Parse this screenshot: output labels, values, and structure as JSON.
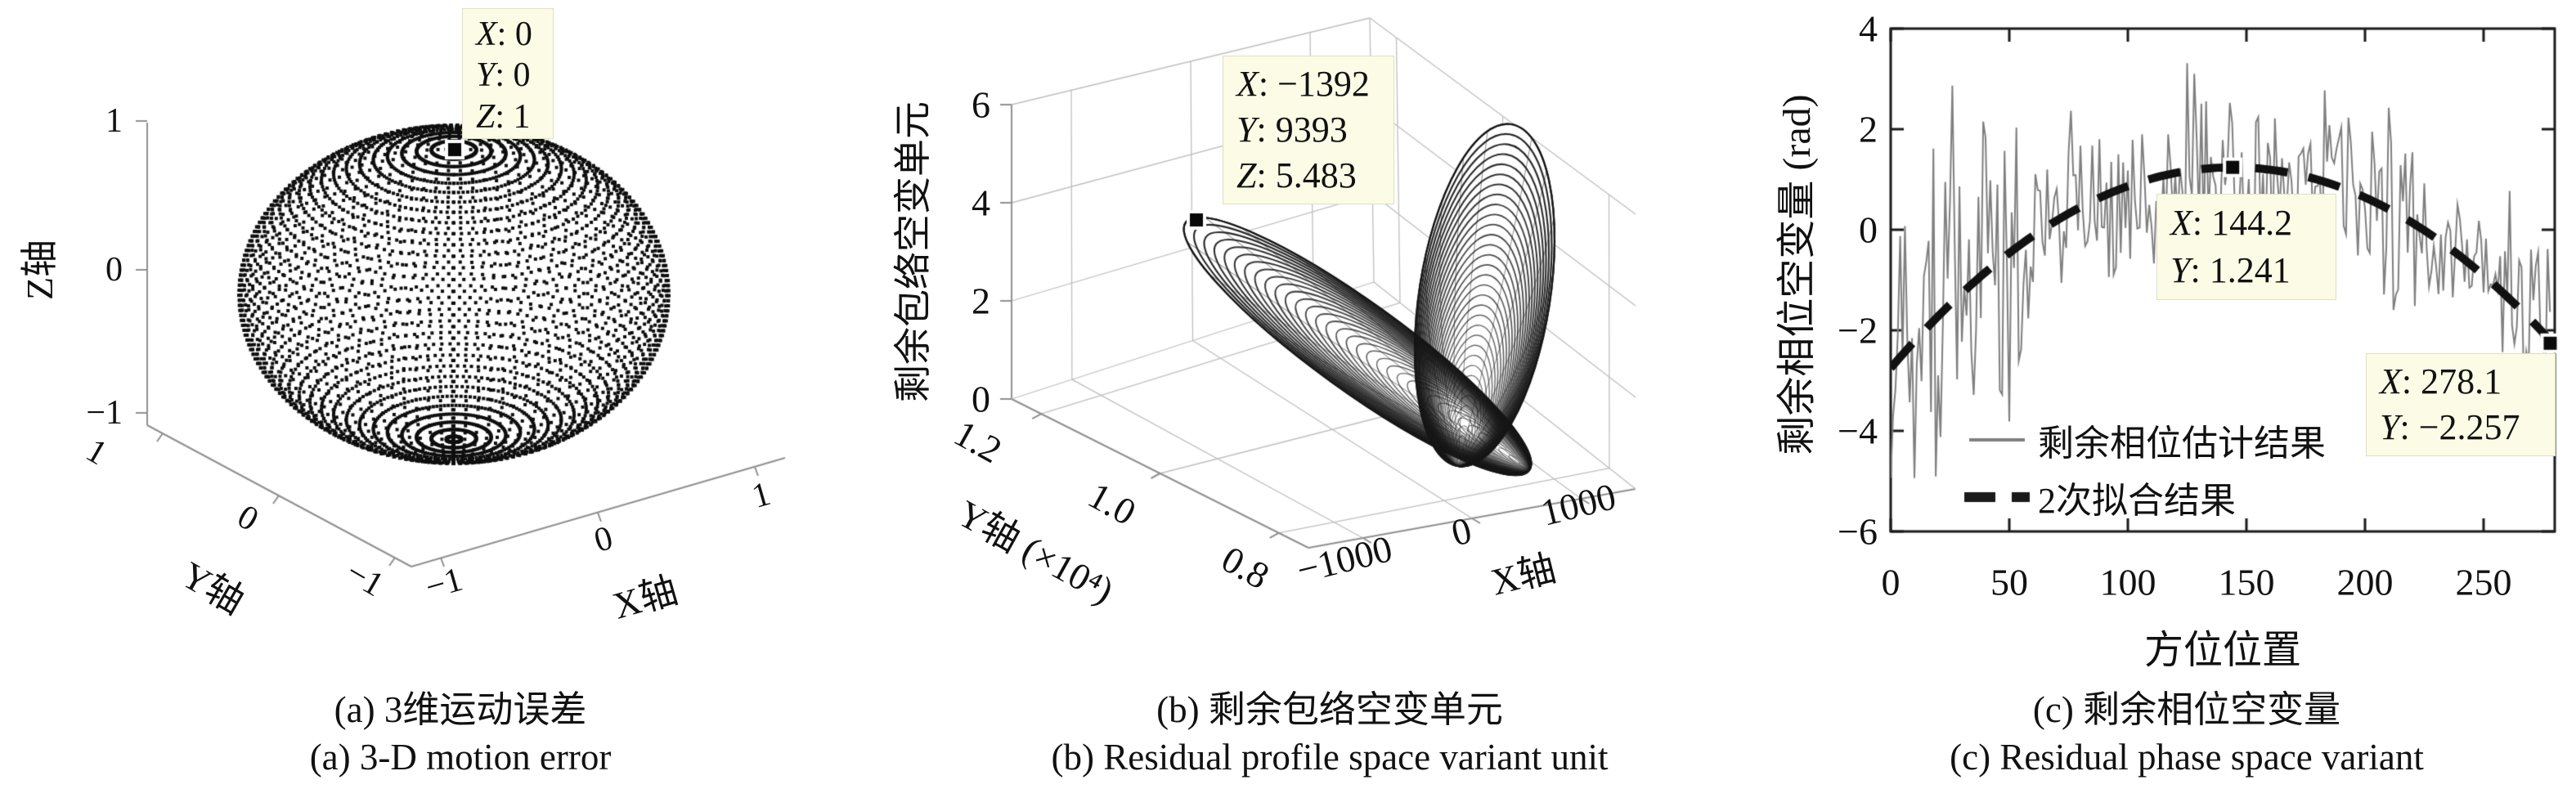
{
  "figure": {
    "background": "#ffffff",
    "datatip_bg": "#fbfbe6",
    "colors": {
      "dots": "#0f0f0f",
      "mesh": "#1c1c1c",
      "grid3d": "#bfbfbf",
      "axis3d": "#909090",
      "axis2d": "#1a1a1a",
      "noisy_line": "#7f7f7f",
      "fit_line": "#111111"
    }
  },
  "chart_data": [
    {
      "panel": "a",
      "type": "scatter",
      "subtype": "3d-point-sphere",
      "caption_zh": "(a) 3维运动误差",
      "caption_en": "(a) 3-D motion error",
      "axes": {
        "x": {
          "label": "X轴",
          "ticks": [
            "−1",
            "0",
            "1"
          ],
          "lim": [
            -1,
            1
          ]
        },
        "y": {
          "label": "Y轴",
          "ticks": [
            "1",
            "0",
            "−1"
          ],
          "lim": [
            -1,
            1
          ]
        },
        "z": {
          "label": "Z轴",
          "ticks": [
            "1",
            "0",
            "−1"
          ],
          "lim": [
            -1,
            1
          ]
        }
      },
      "sphere": {
        "radius": 1,
        "lat_step_deg": 4,
        "lon_step_deg": 3.3
      },
      "datatip": {
        "x": 0,
        "y": 0,
        "z": 1,
        "lines": [
          "X: 0",
          "Y: 0",
          "Z: 1"
        ]
      }
    },
    {
      "panel": "b",
      "type": "area",
      "subtype": "3d-mesh-surface-two-lobes",
      "caption_zh": "(b) 剩余包络空变单元",
      "caption_en": "(b) Residual profile space variant unit",
      "axes": {
        "x": {
          "label": "X轴",
          "ticks": [
            "−1000",
            "0",
            "1000"
          ],
          "lim": [
            -1500,
            1500
          ]
        },
        "y": {
          "label": "Y轴 (×10⁴)",
          "ticks": [
            "1.2",
            "1.0",
            "0.8"
          ],
          "lim": [
            7500,
            12500
          ]
        },
        "z": {
          "label": "剩余包络空变单元",
          "ticks": [
            "0",
            "2",
            "4",
            "6"
          ],
          "lim": [
            0,
            6
          ]
        }
      },
      "surface": {
        "shape": "two V-shaped mesh lobes meeting at the floor",
        "peak_z": 5.483,
        "rings_per_lobe": 34
      },
      "datatip": {
        "x": -1392,
        "y": 9393,
        "z": 5.483,
        "lines": [
          "X: −1392",
          "Y: 9393",
          "Z: 5.483"
        ]
      }
    },
    {
      "panel": "c",
      "type": "line",
      "caption_zh": "(c) 剩余相位空变量",
      "caption_en": "(c) Residual phase space variant",
      "xlabel": "方位位置",
      "ylabel": "剩余相位空变量 (rad)",
      "xlim": [
        0,
        280
      ],
      "ylim": [
        -6,
        4
      ],
      "xticks": [
        "0",
        "50",
        "100",
        "150",
        "200",
        "250"
      ],
      "yticks": [
        "4",
        "2",
        "0",
        "−2",
        "−4",
        "−6"
      ],
      "legend": [
        "剩余相位估计结果",
        "2次拟合结果"
      ],
      "series": [
        {
          "name": "剩余相位估计结果",
          "style": "thin-gray-noisy",
          "generated_from": {
            "basis": "quadratic-fit-plus-noise",
            "noise_sd": 0.9,
            "early_zone_end": 58,
            "early_gain": 1.9,
            "clip": [
              -5.55,
              3.7
            ],
            "seed": 20,
            "x_step": 1,
            "x_end": 278
          }
        },
        {
          "name": "2次拟合结果",
          "style": "thick-black-dashed",
          "fit": {
            "kind": "quadratic",
            "peak_x": 144.2,
            "peak_y": 1.241,
            "k": 0.000192,
            "x_start": 0,
            "x_end": 278.1,
            "y_end": -2.257
          }
        }
      ],
      "datatips": [
        {
          "x": 144.2,
          "y": 1.241,
          "lines": [
            "X: 144.2",
            "Y: 1.241"
          ]
        },
        {
          "x": 278.1,
          "y": -2.257,
          "lines": [
            "X: 278.1",
            "Y: −2.257"
          ]
        }
      ]
    }
  ]
}
